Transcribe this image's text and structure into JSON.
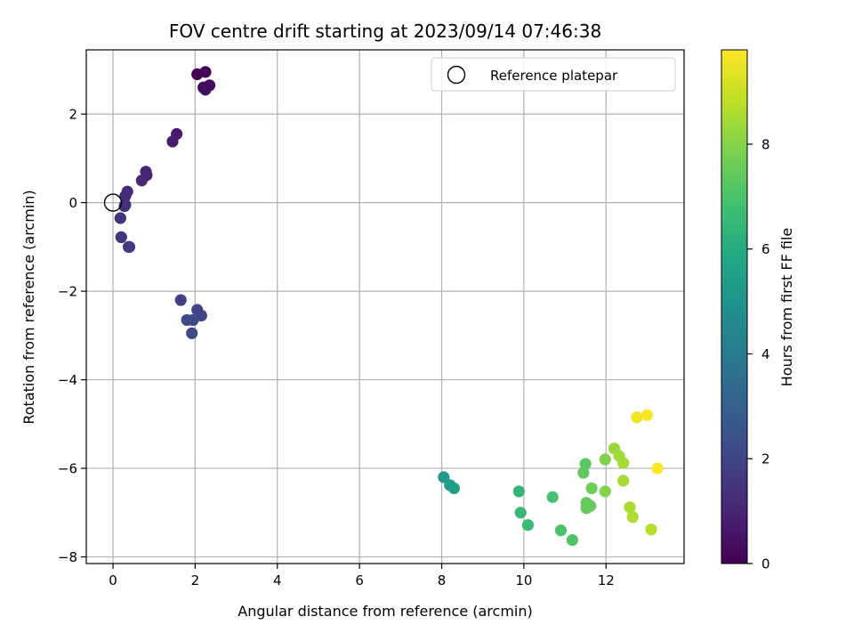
{
  "chart_data": {
    "type": "scatter",
    "title": "FOV centre drift starting at 2023/09/14 07:46:38",
    "xlabel": "Angular distance from reference (arcmin)",
    "ylabel": "Rotation from reference (arcmin)",
    "xlim": [
      -0.65,
      13.9
    ],
    "ylim": [
      -8.15,
      3.45
    ],
    "xticks": [
      0,
      2,
      4,
      6,
      8,
      10,
      12
    ],
    "yticks": [
      -8,
      -6,
      -4,
      -2,
      0,
      2
    ],
    "grid": true,
    "legend": {
      "placement": "top-right",
      "entries": [
        {
          "label": "Reference platepar",
          "marker": "open-circle"
        }
      ]
    },
    "reference_point": {
      "x": 0,
      "y": 0
    },
    "colorbar": {
      "label": "Hours from first FF file",
      "colormap": "viridis",
      "range": [
        0,
        9.8
      ],
      "ticks": [
        0,
        2,
        4,
        6,
        8
      ]
    },
    "series": [
      {
        "points": [
          {
            "x": 2.05,
            "y": 2.9,
            "c": 0.0
          },
          {
            "x": 2.25,
            "y": 2.95,
            "c": 0.1
          },
          {
            "x": 2.2,
            "y": 2.6,
            "c": 0.2
          },
          {
            "x": 2.35,
            "y": 2.65,
            "c": 0.3
          },
          {
            "x": 2.25,
            "y": 2.55,
            "c": 0.35
          },
          {
            "x": 1.55,
            "y": 1.55,
            "c": 0.7
          },
          {
            "x": 1.45,
            "y": 1.38,
            "c": 0.8
          },
          {
            "x": 0.8,
            "y": 0.7,
            "c": 1.0
          },
          {
            "x": 0.82,
            "y": 0.62,
            "c": 1.05
          },
          {
            "x": 0.7,
            "y": 0.5,
            "c": 1.1
          },
          {
            "x": 0.35,
            "y": 0.25,
            "c": 1.2
          },
          {
            "x": 0.3,
            "y": 0.15,
            "c": 1.25
          },
          {
            "x": 0.3,
            "y": -0.05,
            "c": 1.3
          },
          {
            "x": 0.28,
            "y": -0.08,
            "c": 1.35
          },
          {
            "x": 0.18,
            "y": -0.35,
            "c": 1.4
          },
          {
            "x": 0.2,
            "y": -0.78,
            "c": 1.5
          },
          {
            "x": 0.38,
            "y": -1.0,
            "c": 1.6
          },
          {
            "x": 0.4,
            "y": -1.0,
            "c": 1.65
          },
          {
            "x": 1.65,
            "y": -2.2,
            "c": 1.9
          },
          {
            "x": 2.05,
            "y": -2.42,
            "c": 2.0
          },
          {
            "x": 2.15,
            "y": -2.55,
            "c": 2.05
          },
          {
            "x": 1.8,
            "y": -2.65,
            "c": 2.1
          },
          {
            "x": 1.95,
            "y": -2.65,
            "c": 2.15
          },
          {
            "x": 1.92,
            "y": -2.95,
            "c": 2.2
          },
          {
            "x": 8.05,
            "y": -6.2,
            "c": 5.3
          },
          {
            "x": 8.2,
            "y": -6.38,
            "c": 5.45
          },
          {
            "x": 8.3,
            "y": -6.45,
            "c": 5.55
          },
          {
            "x": 9.88,
            "y": -6.52,
            "c": 6.4
          },
          {
            "x": 9.92,
            "y": -7.0,
            "c": 6.5
          },
          {
            "x": 10.1,
            "y": -7.28,
            "c": 6.55
          },
          {
            "x": 10.7,
            "y": -6.65,
            "c": 6.9
          },
          {
            "x": 10.9,
            "y": -7.4,
            "c": 7.0
          },
          {
            "x": 11.18,
            "y": -7.62,
            "c": 7.1
          },
          {
            "x": 11.5,
            "y": -5.9,
            "c": 7.3
          },
          {
            "x": 11.45,
            "y": -6.1,
            "c": 7.35
          },
          {
            "x": 11.52,
            "y": -6.78,
            "c": 7.4
          },
          {
            "x": 11.52,
            "y": -6.9,
            "c": 7.45
          },
          {
            "x": 11.62,
            "y": -6.85,
            "c": 7.5
          },
          {
            "x": 11.65,
            "y": -6.45,
            "c": 7.6
          },
          {
            "x": 11.98,
            "y": -5.8,
            "c": 7.9
          },
          {
            "x": 11.98,
            "y": -6.52,
            "c": 7.95
          },
          {
            "x": 12.2,
            "y": -5.55,
            "c": 8.3
          },
          {
            "x": 12.32,
            "y": -5.72,
            "c": 8.4
          },
          {
            "x": 12.42,
            "y": -5.88,
            "c": 8.45
          },
          {
            "x": 12.42,
            "y": -6.28,
            "c": 8.5
          },
          {
            "x": 12.58,
            "y": -6.88,
            "c": 8.55
          },
          {
            "x": 12.65,
            "y": -7.1,
            "c": 8.6
          },
          {
            "x": 13.1,
            "y": -7.38,
            "c": 8.7
          },
          {
            "x": 12.75,
            "y": -4.85,
            "c": 9.6
          },
          {
            "x": 13.0,
            "y": -4.8,
            "c": 9.7
          },
          {
            "x": 13.25,
            "y": -6.0,
            "c": 9.8
          }
        ]
      }
    ]
  }
}
